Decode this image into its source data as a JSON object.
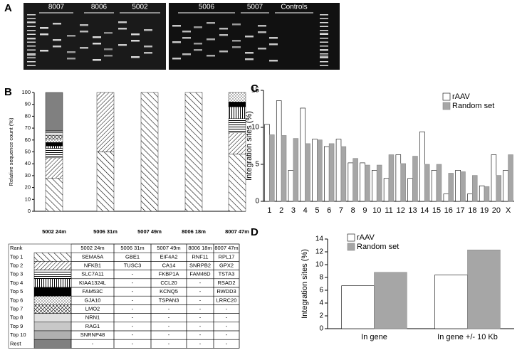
{
  "panel_labels": [
    "A",
    "B",
    "C",
    "D"
  ],
  "gel": {
    "lane_groups": [
      "8007",
      "8006",
      "5002",
      "5006",
      "5007",
      "Controls"
    ]
  },
  "chart_data": [
    {
      "type": "stacked_bar",
      "ylabel": "Relative sequence count (%)",
      "categories": [
        "5002 24m",
        "5006 31m",
        "5007 49m",
        "8006 18m",
        "8007 47m"
      ],
      "ylim": [
        0,
        100
      ],
      "yticks": [
        0,
        10,
        20,
        30,
        40,
        50,
        60,
        70,
        80,
        90,
        100
      ],
      "series": [
        {
          "name": "Top 1",
          "values": [
            28,
            50,
            100,
            100,
            48
          ]
        },
        {
          "name": "Top 2",
          "values": [
            17,
            50,
            0,
            0,
            18
          ]
        },
        {
          "name": "Top 3",
          "values": [
            8,
            0,
            0,
            0,
            12
          ]
        },
        {
          "name": "Top 4",
          "values": [
            2,
            0,
            0,
            0,
            10
          ]
        },
        {
          "name": "Top 5",
          "values": [
            3,
            0,
            0,
            0,
            4
          ]
        },
        {
          "name": "Top 6",
          "values": [
            3,
            0,
            0,
            0,
            8
          ]
        },
        {
          "name": "Top 7",
          "values": [
            3,
            0,
            0,
            0,
            0
          ]
        },
        {
          "name": "Top 8",
          "values": [
            2,
            0,
            0,
            0,
            0
          ]
        },
        {
          "name": "Top 9",
          "values": [
            1,
            0,
            0,
            0,
            0
          ]
        },
        {
          "name": "Top 10",
          "values": [
            1,
            0,
            0,
            0,
            0
          ]
        },
        {
          "name": "Rest",
          "values": [
            32,
            0,
            0,
            0,
            0
          ]
        }
      ]
    },
    {
      "type": "bar",
      "ylabel": "Integration sites (%)",
      "categories": [
        "1",
        "2",
        "3",
        "4",
        "5",
        "6",
        "7",
        "8",
        "9",
        "10",
        "11",
        "12",
        "13",
        "14",
        "15",
        "16",
        "17",
        "18",
        "19",
        "20",
        "X"
      ],
      "ylim": [
        0,
        15
      ],
      "yticks": [
        0,
        5,
        10,
        15
      ],
      "series": [
        {
          "name": "rAAV",
          "color": "#ffffff",
          "values": [
            10.4,
            13.6,
            4.2,
            12.6,
            8.4,
            7.4,
            8.4,
            5.2,
            5.2,
            4.2,
            3.1,
            6.3,
            3.1,
            9.4,
            4.2,
            1.0,
            4.2,
            1.0,
            2.1,
            6.3,
            4.2
          ]
        },
        {
          "name": "Random set",
          "color": "#a6a6a6",
          "values": [
            9.0,
            8.9,
            8.5,
            7.8,
            8.3,
            7.8,
            7.4,
            5.8,
            4.9,
            4.9,
            6.3,
            5.1,
            6.1,
            5.0,
            5.0,
            3.8,
            4.0,
            3.5,
            2.0,
            3.5,
            6.3
          ]
        }
      ]
    },
    {
      "type": "bar",
      "ylabel": "Integration sites (%)",
      "categories": [
        "In gene",
        "In gene +/- 10 Kb"
      ],
      "ylim": [
        0,
        14
      ],
      "yticks": [
        0,
        2,
        4,
        6,
        8,
        10,
        12,
        14
      ],
      "series": [
        {
          "name": "rAAV",
          "color": "#ffffff",
          "values": [
            6.7,
            8.4
          ]
        },
        {
          "name": "Random set",
          "color": "#a6a6a6",
          "values": [
            8.8,
            12.3
          ]
        }
      ]
    }
  ],
  "table": {
    "header": "Rank",
    "rows": [
      [
        "SEMA5A",
        "GBE1",
        "EIF4A2",
        "RNF11",
        "RPL17"
      ],
      [
        "NFKB1",
        "TUSC3",
        "CA14",
        "SNRPB2",
        "GPX2"
      ],
      [
        "SLC7A11",
        "-",
        "FKBP1A",
        "FAM46D",
        "TSTA3"
      ],
      [
        "KIAA1324L",
        "-",
        "CCL20",
        "-",
        "RSAD2"
      ],
      [
        "FAM53C",
        "-",
        "KCNQ5",
        "-",
        "RWDD3"
      ],
      [
        "GJA10",
        "-",
        "TSPAN3",
        "-",
        "LRRC20"
      ],
      [
        "LMO2",
        "-",
        "-",
        "-",
        "-"
      ],
      [
        "NRN1",
        "-",
        "-",
        "-",
        "-"
      ],
      [
        "RAG1",
        "-",
        "-",
        "-",
        "-"
      ],
      [
        "SNRNP48",
        "-",
        "-",
        "-",
        "-"
      ],
      [
        "-",
        "-",
        "-",
        "-",
        "-"
      ]
    ]
  }
}
